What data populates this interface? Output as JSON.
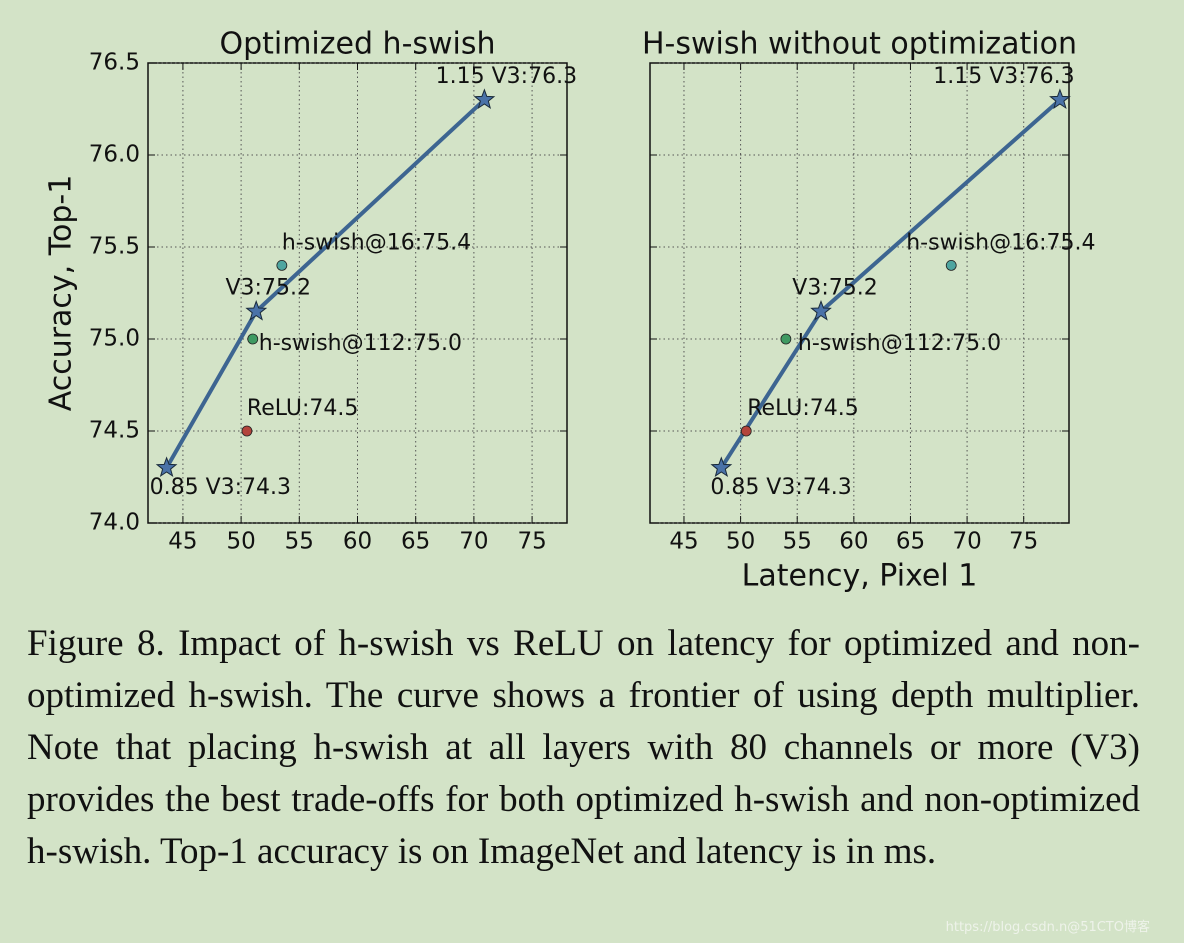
{
  "chart_data": [
    {
      "type": "line",
      "title": "Optimized h-swish",
      "ylabel": "Accuracy, Top-1",
      "xlim": [
        42,
        78
      ],
      "ylim": [
        74,
        76.5
      ],
      "xticks": [
        45,
        50,
        55,
        60,
        65,
        70,
        75
      ],
      "yticks": [
        {
          "value": 74,
          "label": "74.0"
        },
        74.5,
        {
          "value": 75,
          "label": "75.0"
        },
        75.5,
        {
          "value": 76,
          "label": "76.0"
        },
        76.5
      ],
      "show_ytick_labels": true,
      "grid": true,
      "series": [
        {
          "marker": "star",
          "connect": true,
          "color": "#3d6591",
          "x": [
            43.6,
            51.3,
            70.9
          ],
          "values": [
            74.3,
            75.15,
            76.3
          ],
          "point_labels": [
            "0.85 V3:74.3",
            "V3:75.2",
            "1.15 V3:76.3"
          ]
        },
        {
          "marker": "dot",
          "connect": false,
          "color": "#4ea5a0",
          "x": [
            53.5
          ],
          "values": [
            75.4
          ],
          "point_labels": [
            "h-swish@16:75.4"
          ]
        },
        {
          "marker": "dot",
          "connect": false,
          "color": "#3f9a62",
          "x": [
            51.0
          ],
          "values": [
            75.0
          ],
          "point_labels": [
            "h-swish@112:75.0"
          ]
        },
        {
          "marker": "dot",
          "connect": false,
          "color": "#b3443b",
          "x": [
            50.5
          ],
          "values": [
            74.5
          ],
          "point_labels": [
            "ReLU:74.5"
          ]
        }
      ]
    },
    {
      "type": "line",
      "title": "H-swish without optimization",
      "xlabel": "Latency, Pixel 1",
      "xlim": [
        42,
        79
      ],
      "ylim": [
        74,
        76.5
      ],
      "xticks": [
        45,
        50,
        55,
        60,
        65,
        70,
        75
      ],
      "yticks": [
        74,
        74.5,
        75,
        75.5,
        76,
        76.5
      ],
      "show_ytick_labels": false,
      "grid": true,
      "series": [
        {
          "marker": "star",
          "connect": true,
          "color": "#3d6591",
          "x": [
            48.3,
            57.1,
            78.2
          ],
          "values": [
            74.3,
            75.15,
            76.3
          ],
          "point_labels": [
            "0.85 V3:74.3",
            "V3:75.2",
            "1.15 V3:76.3"
          ]
        },
        {
          "marker": "dot",
          "connect": false,
          "color": "#4ea5a0",
          "x": [
            68.6
          ],
          "values": [
            75.4
          ],
          "point_labels": [
            "h-swish@16:75.4"
          ]
        },
        {
          "marker": "dot",
          "connect": false,
          "color": "#3f9a62",
          "x": [
            54.0
          ],
          "values": [
            75.0
          ],
          "point_labels": [
            "h-swish@112:75.0"
          ]
        },
        {
          "marker": "dot",
          "connect": false,
          "color": "#b3443b",
          "x": [
            50.5
          ],
          "values": [
            74.5
          ],
          "point_labels": [
            "ReLU:74.5"
          ]
        }
      ]
    }
  ],
  "caption": "Figure 8. Impact of h-swish vs ReLU on latency for optimized and non-optimized h-swish. The curve shows a frontier of using depth multiplier. Note that placing h-swish at all layers with 80 channels or more (V3) provides the best trade-offs for both optimized h-swish and non-optimized h-swish. Top-1 accuracy is on ImageNet and latency is in ms.",
  "watermark": "https://blog.csdn.n@51CTO博客"
}
